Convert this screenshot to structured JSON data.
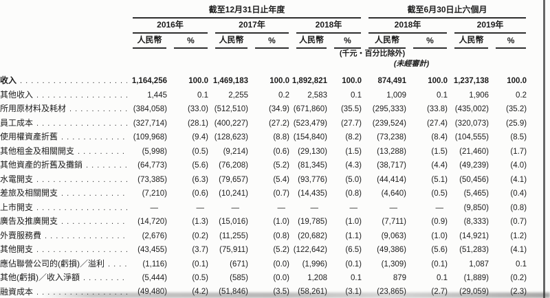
{
  "meta": {
    "background_color": "#fcfcfb",
    "text_color": "#1b1b1b",
    "rule_color": "#2d2d2d",
    "edge_artifact_color": "#4b4b4b"
  },
  "table": {
    "period_groups": [
      {
        "title": "截至12月31日止年度",
        "years": [
          "2016年",
          "2017年",
          "2018年"
        ]
      },
      {
        "title": "截至6月30日止六個月",
        "years": [
          "2018年",
          "2019年"
        ]
      }
    ],
    "currency_label": "人民幣",
    "percent_label": "%",
    "units_note": "(千元‧百分比除外)",
    "unaudited_note": "(未經審計)",
    "rows": [
      {
        "label": "收入",
        "bold": true,
        "values": [
          "1,164,256",
          "100.0",
          "1,469,183",
          "100.0",
          "1,892,821",
          "100.0",
          "874,491",
          "100.0",
          "1,237,138",
          "100.0"
        ]
      },
      {
        "label": "其他收入",
        "values": [
          "1,445",
          "0.1",
          "2,255",
          "0.2",
          "2,583",
          "0.1",
          "1,009",
          "0.1",
          "1,906",
          "0.2"
        ]
      },
      {
        "label": "所用原材料及耗材",
        "values": [
          "(384,058)",
          "(33.0)",
          "(512,510)",
          "(34.9)",
          "(671,860)",
          "(35.5)",
          "(295,333)",
          "(33.8)",
          "(435,002)",
          "(35.2)"
        ]
      },
      {
        "label": "員工成本",
        "values": [
          "(327,714)",
          "(28.1)",
          "(400,227)",
          "(27.2)",
          "(523,479)",
          "(27.7)",
          "(239,524)",
          "(27.4)",
          "(320,073)",
          "(25.9)"
        ]
      },
      {
        "label": "使用權資產折舊",
        "values": [
          "(109,968)",
          "(9.4)",
          "(128,623)",
          "(8.8)",
          "(154,840)",
          "(8.2)",
          "(73,238)",
          "(8.4)",
          "(104,555)",
          "(8.5)"
        ]
      },
      {
        "label": "其他租金及相關開支",
        "values": [
          "(5,998)",
          "(0.5)",
          "(9,214)",
          "(0.6)",
          "(29,130)",
          "(1.5)",
          "(13,288)",
          "(1.5)",
          "(21,460)",
          "(1.7)"
        ]
      },
      {
        "label": "其他資產的折舊及攤銷",
        "values": [
          "(64,773)",
          "(5.6)",
          "(76,208)",
          "(5.2)",
          "(81,345)",
          "(4.3)",
          "(38,717)",
          "(4.4)",
          "(49,239)",
          "(4.0)"
        ]
      },
      {
        "label": "水電開支",
        "values": [
          "(73,385)",
          "(6.3)",
          "(79,657)",
          "(5.4)",
          "(93,776)",
          "(5.0)",
          "(44,414)",
          "(5.1)",
          "(50,456)",
          "(4.1)"
        ]
      },
      {
        "label": "差旅及相關開支",
        "values": [
          "(7,210)",
          "(0.6)",
          "(10,241)",
          "(0.7)",
          "(14,435)",
          "(0.8)",
          "(4,640)",
          "(0.5)",
          "(5,465)",
          "(0.4)"
        ]
      },
      {
        "label": "上市開支",
        "values": [
          "—",
          "—",
          "—",
          "—",
          "—",
          "—",
          "—",
          "—",
          "(9,850)",
          "(0.8)"
        ]
      },
      {
        "label": "廣告及推廣開支",
        "values": [
          "(14,720)",
          "(1.3)",
          "(15,016)",
          "(1.0)",
          "(19,785)",
          "(1.0)",
          "(7,711)",
          "(0.9)",
          "(8,333)",
          "(0.7)"
        ]
      },
      {
        "label": "外賣服務費",
        "values": [
          "(2,676)",
          "(0.2)",
          "(11,255)",
          "(0.8)",
          "(20,682)",
          "(1.1)",
          "(9,063)",
          "(1.0)",
          "(14,921)",
          "(1.2)"
        ]
      },
      {
        "label": "其他開支",
        "values": [
          "(43,455)",
          "(3.7)",
          "(75,911)",
          "(5.2)",
          "(122,642)",
          "(6.5)",
          "(49,386)",
          "(5.6)",
          "(51,283)",
          "(4.1)"
        ]
      },
      {
        "label": "應佔聯營公司的(虧損)／溢利",
        "values": [
          "(1,116)",
          "(0.1)",
          "(671)",
          "(0.0)",
          "(1,996)",
          "(0.1)",
          "(1,309)",
          "(0.1)",
          "1,087",
          "0.1"
        ]
      },
      {
        "label": "其他(虧損)／收入淨額",
        "values": [
          "(5,444)",
          "(0.5)",
          "(585)",
          "(0.0)",
          "1,208",
          "0.1",
          "879",
          "0.1",
          "(1,889)",
          "(0.2)"
        ]
      },
      {
        "label": "融資成本",
        "underline": true,
        "values": [
          "(49,480)",
          "(4.2)",
          "(51,846)",
          "(3.5)",
          "(58,261)",
          "(3.1)",
          "(23,865)",
          "(2.7)",
          "(29,059)",
          "(2.3)"
        ]
      }
    ]
  }
}
